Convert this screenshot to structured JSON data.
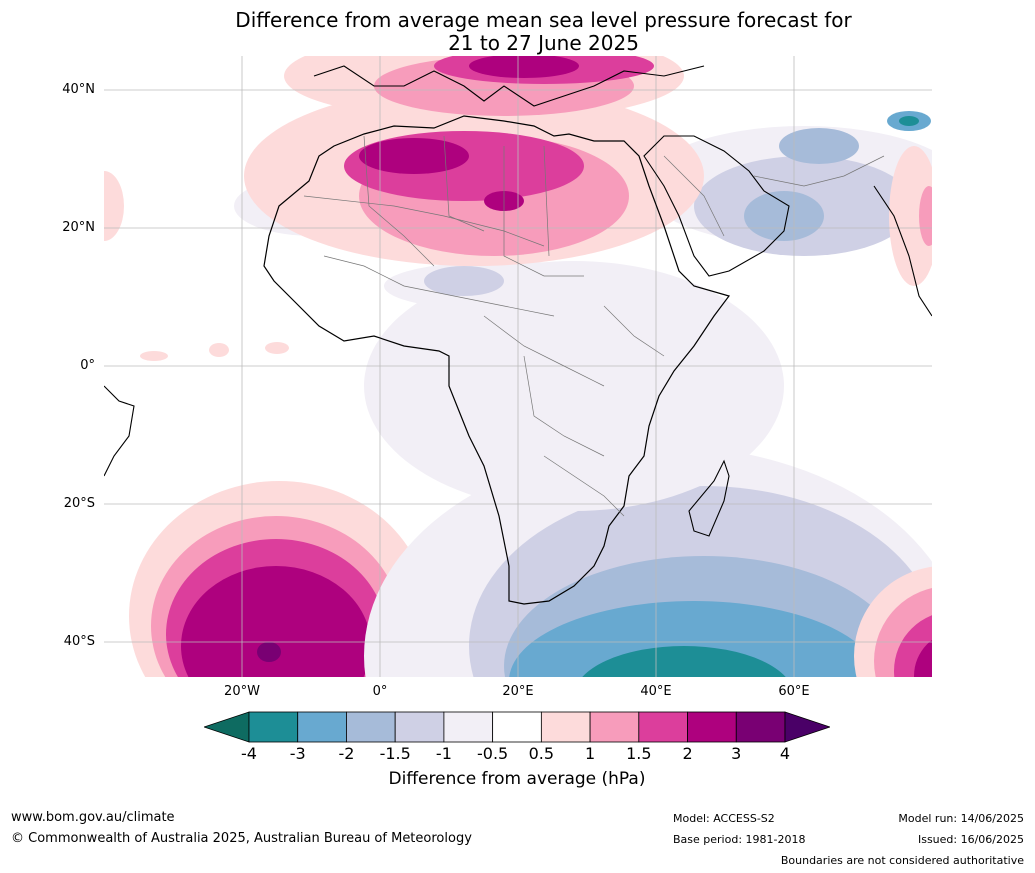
{
  "title_line1": "Difference from average mean sea level pressure forecast for",
  "title_line2": "21 to 27 June 2025",
  "lat_labels": [
    "40°N",
    "20°N",
    "0°",
    "20°S",
    "40°S"
  ],
  "lon_labels": [
    "20°W",
    "0°",
    "20°E",
    "40°E",
    "60°E"
  ],
  "colorbar": {
    "ticks": [
      "-4",
      "-3",
      "-2",
      "-1.5",
      "-1",
      "-0.5",
      "0.5",
      "1",
      "1.5",
      "2",
      "3",
      "4"
    ],
    "colors": [
      "#0e6b61",
      "#1d8e96",
      "#68a9d0",
      "#a6bbd9",
      "#cfd0e5",
      "#f2eff6",
      "#ffffff",
      "#fddbdb",
      "#f79cbb",
      "#dc3e9c",
      "#ae017e",
      "#790073",
      "#4a0067"
    ],
    "label": "Difference from average (hPa)"
  },
  "footer": {
    "website": "www.bom.gov.au/climate",
    "copyright": "© Commonwealth of Australia 2025, Australian Bureau of Meteorology",
    "model": "Model: ACCESS-S2",
    "base_period": "Base period: 1981-2018",
    "model_run": "Model run: 14/06/2025",
    "issued": "Issued: 16/06/2025",
    "disclaimer": "Boundaries are not considered authoritative"
  }
}
